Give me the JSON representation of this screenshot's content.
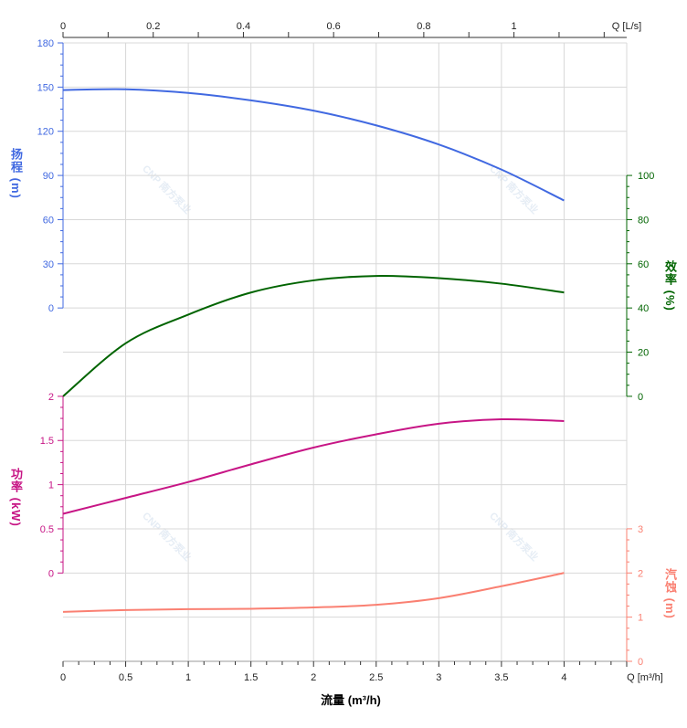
{
  "chart_data": {
    "type": "line",
    "x_label": "流量 (m³/h)",
    "x_unit_label": "Q [m³/h]",
    "x_ticks": [
      0,
      0.5,
      1,
      1.5,
      2,
      2.5,
      3,
      3.5,
      4
    ],
    "xlim": [
      0,
      4.5
    ],
    "top_axis": {
      "unit_label": "Q [L/s]",
      "ticks": [
        0,
        0.2,
        0.4,
        0.6,
        0.8,
        1
      ],
      "factor": 3.6
    },
    "watermark": "CNP 南方泵业",
    "grid": true,
    "x": [
      0,
      0.5,
      1,
      1.5,
      2,
      2.5,
      3,
      3.5,
      4
    ],
    "series": [
      {
        "name": "head",
        "axis_title": "扬程 (m)",
        "color": "#4169e1",
        "ticks": [
          0,
          30,
          60,
          90,
          120,
          150,
          180
        ],
        "ylim": [
          0,
          180
        ],
        "values": [
          148,
          148.5,
          146,
          141,
          134,
          124,
          111,
          94,
          73
        ]
      },
      {
        "name": "efficiency",
        "axis_title": "效率 (%)",
        "color": "#006400",
        "ticks": [
          0,
          20,
          40,
          60,
          80,
          100
        ],
        "ylim": [
          0,
          100
        ],
        "values": [
          0,
          24,
          37,
          47,
          52.5,
          54.5,
          53.5,
          51,
          47
        ]
      },
      {
        "name": "power",
        "axis_title": "功率 (kW)",
        "color": "#c71585",
        "ticks": [
          0,
          0.5,
          1,
          1.5,
          2
        ],
        "ylim": [
          0,
          2
        ],
        "values": [
          0.67,
          0.85,
          1.03,
          1.23,
          1.42,
          1.57,
          1.69,
          1.74,
          1.72
        ]
      },
      {
        "name": "npsh",
        "axis_title": "汽蚀 (m)",
        "color": "#fa8072",
        "ticks": [
          0,
          1,
          2,
          3
        ],
        "ylim": [
          0,
          3
        ],
        "values": [
          1.12,
          1.16,
          1.18,
          1.19,
          1.22,
          1.28,
          1.43,
          1.7,
          2.0
        ]
      }
    ]
  }
}
